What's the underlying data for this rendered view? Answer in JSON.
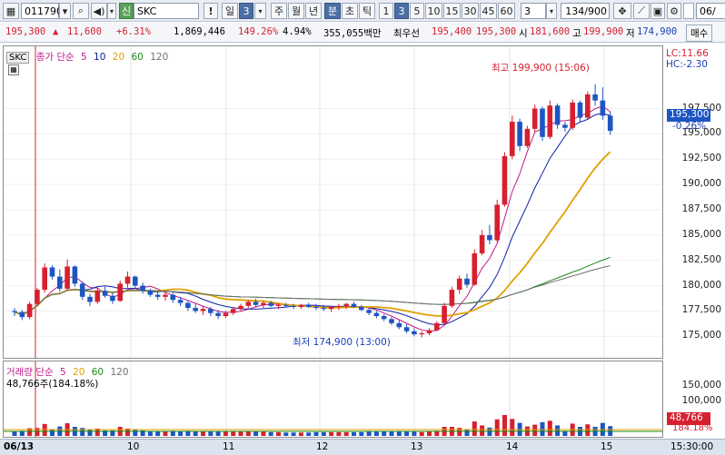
{
  "toolbar": {
    "code": "011790",
    "stock_badge": "신",
    "stock_name": "SKC",
    "alert_btn": "!",
    "period_day": "일",
    "period_count": "3",
    "period_buttons": [
      "주",
      "월",
      "년",
      "분",
      "초",
      "틱"
    ],
    "minute_buttons": [
      "1",
      "3",
      "5",
      "10",
      "15",
      "30",
      "45",
      "60"
    ],
    "selected_minute": "3",
    "interval_value": "3",
    "page_counter": "134/900",
    "trailing_field": "06/"
  },
  "quote": {
    "price": "195,300",
    "change_arrow": "▲",
    "change": "11,600",
    "change_pct": "+6.31%",
    "volume": "1,869,446",
    "vol_ratio": "149.26%",
    "turnover": "4.94%",
    "amount": "355,055백만",
    "best_label": "최우선",
    "ask": "195,400",
    "bid": "195,300",
    "open_label": "시",
    "open": "181,600",
    "high_label": "고",
    "high": "199,900",
    "low_label": "저",
    "low": "174,900",
    "order_btn": "매수"
  },
  "main_legend": {
    "stock": "SKC",
    "ma_title": "종가 단순",
    "ma_periods": [
      "5",
      "10",
      "20",
      "60",
      "120"
    ],
    "ma_colors": [
      "#c0198b",
      "#1020a8",
      "#e0a000",
      "#1a8a1a",
      "#707070"
    ]
  },
  "annotations": {
    "high": "최고 199,900 (15:06)",
    "low": "최저 174,900 (13:00)",
    "lc": "LC:11.66",
    "hc": "HC:-2.30",
    "current_price": "195,300",
    "current_pct": "-0.26%"
  },
  "y_axis": [
    "197,500",
    "195,000",
    "192,500",
    "190,000",
    "187,500",
    "185,000",
    "182,500",
    "180,000",
    "177,500",
    "175,000"
  ],
  "vol_legend": {
    "title": "거래량 단순",
    "ma_periods": [
      "5",
      "20",
      "60",
      "120"
    ],
    "value": "48,766주(184.18%)"
  },
  "vol_axis": [
    "150,000",
    "100,000"
  ],
  "vol_current": "48,766",
  "vol_pct": "184.18%",
  "date_labels": [
    "06/13",
    "10",
    "11",
    "12",
    "13",
    "14",
    "15"
  ],
  "time_label": "15:30:00",
  "chart_data": {
    "type": "candlestick",
    "ylim": [
      173500,
      201500
    ],
    "candles": [
      [
        177500,
        177800,
        177000,
        177400
      ],
      [
        177400,
        177600,
        176600,
        176900
      ],
      [
        176900,
        178400,
        176700,
        178200
      ],
      [
        178200,
        179800,
        178000,
        179600
      ],
      [
        179600,
        182200,
        179300,
        181800
      ],
      [
        181800,
        182000,
        180600,
        180900
      ],
      [
        180900,
        181600,
        179400,
        179700
      ],
      [
        179700,
        182600,
        179500,
        181900
      ],
      [
        181900,
        182000,
        179900,
        180200
      ],
      [
        180200,
        180400,
        178600,
        178900
      ],
      [
        178900,
        179200,
        178000,
        178400
      ],
      [
        178400,
        179800,
        178200,
        179500
      ],
      [
        179500,
        179900,
        178800,
        179000
      ],
      [
        179000,
        179300,
        178200,
        178500
      ],
      [
        178500,
        180500,
        178400,
        180200
      ],
      [
        180200,
        181400,
        179800,
        180900
      ],
      [
        180900,
        181000,
        179800,
        180000
      ],
      [
        180000,
        180300,
        179200,
        179500
      ],
      [
        179500,
        179700,
        178900,
        179100
      ],
      [
        179100,
        179500,
        178600,
        178900
      ],
      [
        178900,
        179400,
        178500,
        179100
      ],
      [
        179100,
        179300,
        178300,
        178600
      ],
      [
        178600,
        178900,
        178000,
        178300
      ],
      [
        178300,
        178500,
        177500,
        177800
      ],
      [
        177800,
        178200,
        177300,
        177500
      ],
      [
        177500,
        178000,
        177100,
        177700
      ],
      [
        177700,
        177900,
        177000,
        177300
      ],
      [
        177300,
        177600,
        176700,
        177000
      ],
      [
        177000,
        177500,
        176800,
        177300
      ],
      [
        177300,
        177900,
        177100,
        177700
      ],
      [
        177700,
        178200,
        177500,
        178000
      ],
      [
        178000,
        178600,
        177800,
        178400
      ],
      [
        178400,
        178700,
        177900,
        178100
      ],
      [
        178100,
        178500,
        177800,
        178300
      ],
      [
        178300,
        178500,
        177900,
        178000
      ],
      [
        178000,
        178300,
        177700,
        178100
      ],
      [
        178100,
        178300,
        177800,
        178000
      ],
      [
        178000,
        178200,
        177700,
        177900
      ],
      [
        177900,
        178200,
        177700,
        178100
      ],
      [
        178100,
        178300,
        177800,
        177900
      ],
      [
        177900,
        178200,
        177600,
        177800
      ],
      [
        177800,
        178100,
        177500,
        177700
      ],
      [
        177700,
        178000,
        177400,
        177900
      ],
      [
        177900,
        178200,
        177600,
        178000
      ],
      [
        178000,
        178300,
        177700,
        178200
      ],
      [
        178200,
        178400,
        177800,
        177900
      ],
      [
        177900,
        178100,
        177500,
        177600
      ],
      [
        177600,
        177800,
        177100,
        177300
      ],
      [
        177300,
        177500,
        176800,
        177000
      ],
      [
        177000,
        177200,
        176500,
        176700
      ],
      [
        176700,
        176900,
        176100,
        176300
      ],
      [
        176300,
        176600,
        175700,
        175900
      ],
      [
        175900,
        176200,
        175300,
        175500
      ],
      [
        175500,
        175800,
        175000,
        175200
      ],
      [
        175200,
        175500,
        174900,
        175300
      ],
      [
        175300,
        175800,
        175100,
        175600
      ],
      [
        175600,
        176500,
        175500,
        176300
      ],
      [
        176300,
        178300,
        176200,
        178000
      ],
      [
        178000,
        179900,
        177800,
        179600
      ],
      [
        179600,
        181000,
        179200,
        180700
      ],
      [
        180700,
        181200,
        179800,
        180100
      ],
      [
        180100,
        183600,
        180000,
        183200
      ],
      [
        183200,
        185500,
        183000,
        185000
      ],
      [
        185000,
        186000,
        184100,
        184500
      ],
      [
        184500,
        188500,
        184300,
        188000
      ],
      [
        188000,
        193200,
        187800,
        192800
      ],
      [
        192800,
        196800,
        192500,
        196200
      ],
      [
        196200,
        196500,
        193300,
        193800
      ],
      [
        193800,
        195800,
        193600,
        195500
      ],
      [
        195500,
        197900,
        195200,
        197500
      ],
      [
        197500,
        197700,
        194300,
        194700
      ],
      [
        194700,
        198300,
        194500,
        197800
      ],
      [
        197800,
        198000,
        195500,
        195900
      ],
      [
        195900,
        196200,
        195200,
        195600
      ],
      [
        195600,
        198400,
        195400,
        198100
      ],
      [
        198100,
        198300,
        196200,
        196600
      ],
      [
        196600,
        199200,
        196400,
        198900
      ],
      [
        198900,
        199900,
        197800,
        198300
      ],
      [
        198300,
        199600,
        196400,
        196800
      ],
      [
        196800,
        197200,
        194900,
        195300
      ]
    ],
    "volume_max": 160000
  }
}
